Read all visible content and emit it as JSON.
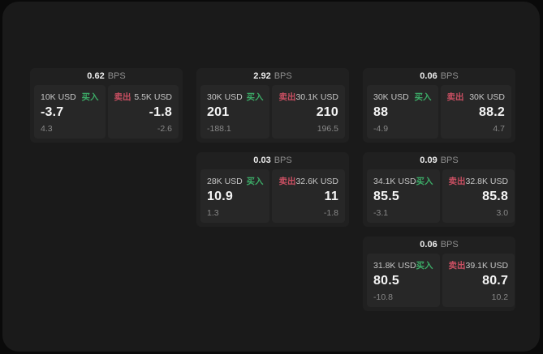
{
  "labels": {
    "bps_unit": "BPS",
    "buy": "买入",
    "sell": "卖出"
  },
  "colors": {
    "buy": "#3cab67",
    "sell": "#c94f62"
  },
  "cards": [
    {
      "row": 0,
      "col": 0,
      "bps": "0.62",
      "buy": {
        "amount": "10K USD",
        "value": "-3.7",
        "delta": "4.3"
      },
      "sell": {
        "amount": "5.5K USD",
        "value": "-1.8",
        "delta": "-2.6"
      }
    },
    {
      "row": 0,
      "col": 1,
      "bps": "2.92",
      "buy": {
        "amount": "30K USD",
        "value": "201",
        "delta": "-188.1"
      },
      "sell": {
        "amount": "30.1K USD",
        "value": "210",
        "delta": "196.5"
      }
    },
    {
      "row": 0,
      "col": 2,
      "bps": "0.06",
      "buy": {
        "amount": "30K USD",
        "value": "88",
        "delta": "-4.9"
      },
      "sell": {
        "amount": "30K USD",
        "value": "88.2",
        "delta": "4.7"
      }
    },
    {
      "row": 1,
      "col": 1,
      "bps": "0.03",
      "buy": {
        "amount": "28K USD",
        "value": "10.9",
        "delta": "1.3"
      },
      "sell": {
        "amount": "32.6K USD",
        "value": "11",
        "delta": "-1.8"
      }
    },
    {
      "row": 1,
      "col": 2,
      "bps": "0.09",
      "buy": {
        "amount": "34.1K USD",
        "value": "85.5",
        "delta": "-3.1"
      },
      "sell": {
        "amount": "32.8K USD",
        "value": "85.8",
        "delta": "3.0"
      }
    },
    {
      "row": 2,
      "col": 2,
      "bps": "0.06",
      "buy": {
        "amount": "31.8K USD",
        "value": "80.5",
        "delta": "-10.8"
      },
      "sell": {
        "amount": "39.1K USD",
        "value": "80.7",
        "delta": "10.2"
      }
    }
  ]
}
